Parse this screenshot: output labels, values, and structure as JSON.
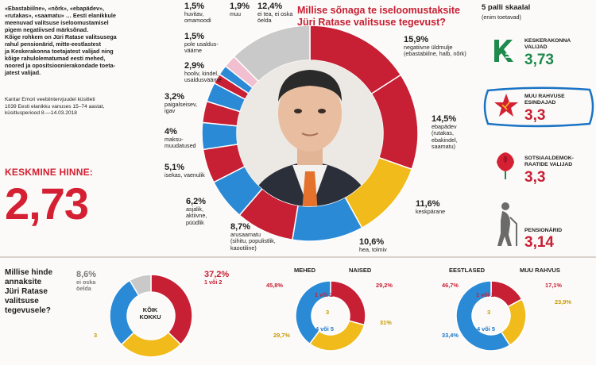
{
  "intro": {
    "line1": "«Ebastabiilne», «nõrk», «ebapädev»,",
    "line2": "«rutakas», «saamatu» … Eesti elanikkule",
    "line3": "meenuvad valitsuse iseloomustamisel",
    "line4": "pigem negatiivsed märksõnad.",
    "line5": "Kõige rohkem on Jüri Ratase valitsusega",
    "line6": "rahul pensionärid, mitte-eestlastest",
    "line7": "ja Keskerakonna toetajatest valijad ning",
    "line8": "kõige rahulolematumad eesti mehed,",
    "line9": "noored ja opositsioonierakondade toeta-",
    "line10": "jatest valijad."
  },
  "source": {
    "line1": "Kantar Emori veebiintervjuudel küsitleti",
    "line2": "1039 Eesti elanikku vanuses 15–74 aastat,",
    "line3": "küsitlusperiood 8.—14.03.2018"
  },
  "average": {
    "label": "KESKMINE HINNE:",
    "value": "2,73"
  },
  "title": {
    "line1": "Millise sõnaga te iseloomustaksite",
    "line2": "Jüri Ratase valitsuse tegevust?"
  },
  "scale": {
    "title": "5 palli skaalal",
    "subtitle": "(enim toetavad)"
  },
  "parties": [
    {
      "name1": "KESKERAKONNA",
      "name2": "VALIJAD",
      "score": "3,73"
    },
    {
      "name1": "MUU RAHVUSE",
      "name2": "ESINDAJAD",
      "score": "3,3"
    },
    {
      "name1": "SOTSIAALDEMOK-",
      "name2": "RAATIDE VALIJAD",
      "score": "3,3"
    },
    {
      "name1": "PENSIONÄRID",
      "name2": "",
      "score": "3,14"
    }
  ],
  "colors": {
    "red": "#c71f33",
    "yellow": "#f2bb1c",
    "blue": "#2b8ad6",
    "grey": "#c9c9c9",
    "pink": "#f1bfd0",
    "green": "#1e8a4c"
  },
  "chart_data": [
    {
      "type": "pie",
      "variant": "donut",
      "categories": [
        "negatiivne üldmulje (ebastabiilne, halb, nõrk)",
        "ebapädev (rutakas, ebakindel, saamatu)",
        "keskpärane",
        "hea, tolmiv",
        "arusaamatu (sihitu, populistlik, kaootiline)",
        "asjalik, aktiivne, püüdlik",
        "isekas, vaenulik",
        "maksu-muudatused",
        "paigalseisev, igav",
        "hooliv, kindel, usaldusväärne",
        "pole usaldus-väärne",
        "huvitav, omamoodi",
        "muu",
        "ei tea, ei oska öelda"
      ],
      "values": [
        15.9,
        14.5,
        11.6,
        10.6,
        8.7,
        6.2,
        5.1,
        4,
        3.2,
        2.9,
        1.5,
        1.5,
        1.9,
        12.4
      ],
      "labels": [
        {
          "pct": "15,9%",
          "l1": "negatiivne üldmulje",
          "l2": "(ebastabiilne, halb, nõrk)",
          "l3": ""
        },
        {
          "pct": "14,5%",
          "l1": "ebapädev",
          "l2": "(rutakas,",
          "l3": "ebakindel,",
          "l4": "saamatu)"
        },
        {
          "pct": "11,6%",
          "l1": "keskpärane",
          "l2": "",
          "l3": ""
        },
        {
          "pct": "10,6%",
          "l1": "hea, tolmiv",
          "l2": "",
          "l3": ""
        },
        {
          "pct": "8,7%",
          "l1": "arusaamatu",
          "l2": "(sihitu, populistlik,",
          "l3": "kaootiline)"
        },
        {
          "pct": "6,2%",
          "l1": "asjalik,",
          "l2": "aktiivne,",
          "l3": "püüdlik"
        },
        {
          "pct": "5,1%",
          "l1": "isekas, vaenulik",
          "l2": "",
          "l3": ""
        },
        {
          "pct": "4%",
          "l1": "maksu-",
          "l2": "muudatused",
          "l3": ""
        },
        {
          "pct": "3,2%",
          "l1": "paigalseisev,",
          "l2": "igav",
          "l3": ""
        },
        {
          "pct": "2,9%",
          "l1": "hooliv, kindel,",
          "l2": "usaldusväärne",
          "l3": ""
        },
        {
          "pct": "1,5%",
          "l1": "pole usaldus-",
          "l2": "väärne",
          "l3": ""
        },
        {
          "pct": "1,5%",
          "l1": "huvitav,",
          "l2": "omamoodi",
          "l3": ""
        },
        {
          "pct": "1,9%",
          "l1": "muu",
          "l2": "",
          "l3": ""
        },
        {
          "pct": "12,4%",
          "l1": "ei tea, ei oska",
          "l2": "öelda",
          "l3": ""
        }
      ],
      "colors": [
        "#c71f33",
        "#c71f33",
        "#f2bb1c",
        "#2b8ad6",
        "#c71f33",
        "#2b8ad6",
        "#c71f33",
        "#2b8ad6",
        "#c71f33",
        "#2b8ad6",
        "#c71f33",
        "#2b8ad6",
        "#f1bfd0",
        "#c9c9c9"
      ]
    },
    {
      "type": "pie",
      "variant": "donut",
      "title": "KÕIK KOKKU",
      "categories": [
        "1 või 2",
        "3",
        "4 või 5",
        "ei oska öelda"
      ],
      "values": [
        37.2,
        25.5,
        28.7,
        8.6
      ],
      "colors": [
        "#c71f33",
        "#f2bb1c",
        "#2b8ad6",
        "#c9c9c9"
      ]
    }
  ],
  "q2": {
    "line1": "Millise hinde",
    "line2": "annaksite",
    "line3": "Jüri Ratase",
    "line4": "valitsuse",
    "line5": "tegevusele?"
  },
  "q2chart": {
    "dk_pct": "8,6%",
    "dk_l1": "ei oska",
    "dk_l2": "öelda",
    "red_pct": "37,2%",
    "red_label": "1 või 2",
    "yellow_pct": "3",
    "center1": "KÕIK",
    "center2": "KOKKU"
  },
  "groups": {
    "mehed": "MEHED",
    "naised": "NAISED",
    "eestlased": "EESTLASED",
    "muu": "MUU RAHVUS",
    "mehed_red": "45,8%",
    "mehed_yel": "29,7%",
    "naised_red": "29,2%",
    "naised_yel": "31%",
    "eest_red": "46,7%",
    "eest_blue": "33,4%",
    "muu_red": "17,1%",
    "muu_yel": "23,9%",
    "c_1v2": "1 või 2",
    "c_3": "3",
    "c_45": "4 või 5"
  }
}
